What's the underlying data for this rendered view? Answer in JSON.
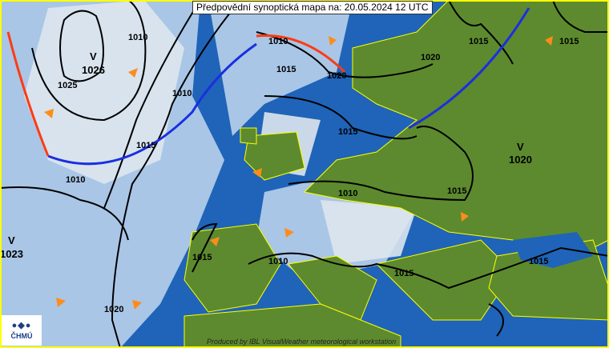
{
  "title": "Předpovědní synoptická mapa na: 20.05.2024 12 UTC",
  "credit": "Produced by IBL VisualWeather meteorological workstation",
  "logo": {
    "symbol": "●◆●",
    "text": "ČHMÚ"
  },
  "colors": {
    "sea": "#1f64b8",
    "shallow": "#a9c6e6",
    "land": "#5d8a2e",
    "cloud": "#dfe6ee",
    "border": "#ffff00",
    "cold_front": "#1a2fe0",
    "warm_front": "#ff3b14",
    "isobar": "#000000",
    "wind_arrow": "#ff8c1a"
  },
  "pressure_centers": [
    {
      "type": "V",
      "value": "1026"
    },
    {
      "type": "V",
      "value": "1023"
    },
    {
      "type": "V",
      "value": "1020"
    }
  ],
  "isobar_labels": [
    "1025",
    "1010",
    "1010",
    "1015",
    "1010",
    "1015",
    "1020",
    "1015",
    "1010",
    "1015",
    "1020",
    "1015",
    "1010",
    "1015",
    "1015",
    "1010",
    "1015",
    "1015",
    "1020"
  ]
}
